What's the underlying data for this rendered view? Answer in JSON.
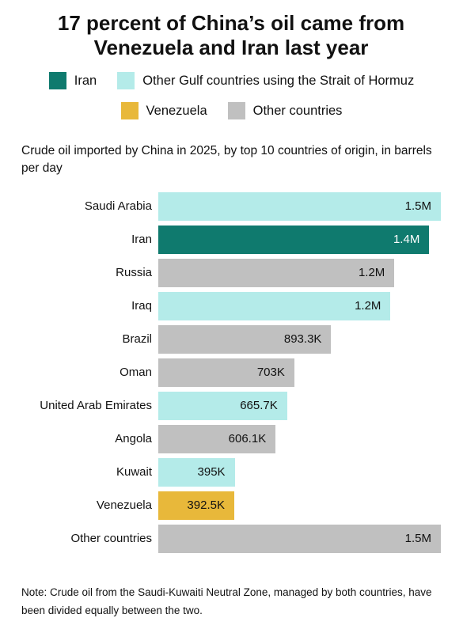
{
  "chart_data": {
    "type": "bar",
    "orientation": "horizontal",
    "title": "17 percent of China’s oil came from Venezuela and Iran last year",
    "subtitle": "Crude oil imported by China in 2025, by top 10 countries of origin, in barrels per day",
    "legend": [
      {
        "name": "Iran",
        "color": "#0f7a6e"
      },
      {
        "name": "Other Gulf countries using the Strait of Hormuz",
        "color": "#b4ebe9"
      },
      {
        "name": "Venezuela",
        "color": "#e8b83a"
      },
      {
        "name": "Other countries",
        "color": "#c0c0c0"
      }
    ],
    "categories": [
      "Saudi Arabia",
      "Iran",
      "Russia",
      "Iraq",
      "Brazil",
      "Oman",
      "United Arab Emirates",
      "Angola",
      "Kuwait",
      "Venezuela",
      "Other countries"
    ],
    "values": [
      1460000,
      1400000,
      1220000,
      1200000,
      893300,
      703000,
      665700,
      606100,
      395000,
      392500,
      1460000
    ],
    "value_labels": [
      "1.5M",
      "1.4M",
      "1.2M",
      "1.2M",
      "893.3K",
      "703K",
      "665.7K",
      "606.1K",
      "395K",
      "392.5K",
      "1.5M"
    ],
    "colors": [
      "#b4ebe9",
      "#0f7a6e",
      "#c0c0c0",
      "#b4ebe9",
      "#c0c0c0",
      "#c0c0c0",
      "#b4ebe9",
      "#c0c0c0",
      "#b4ebe9",
      "#e8b83a",
      "#c0c0c0"
    ],
    "note": "Note: Crude oil from the Saudi-Kuwaiti Neutral Zone, managed by both countries, have been divided equally between the two."
  }
}
